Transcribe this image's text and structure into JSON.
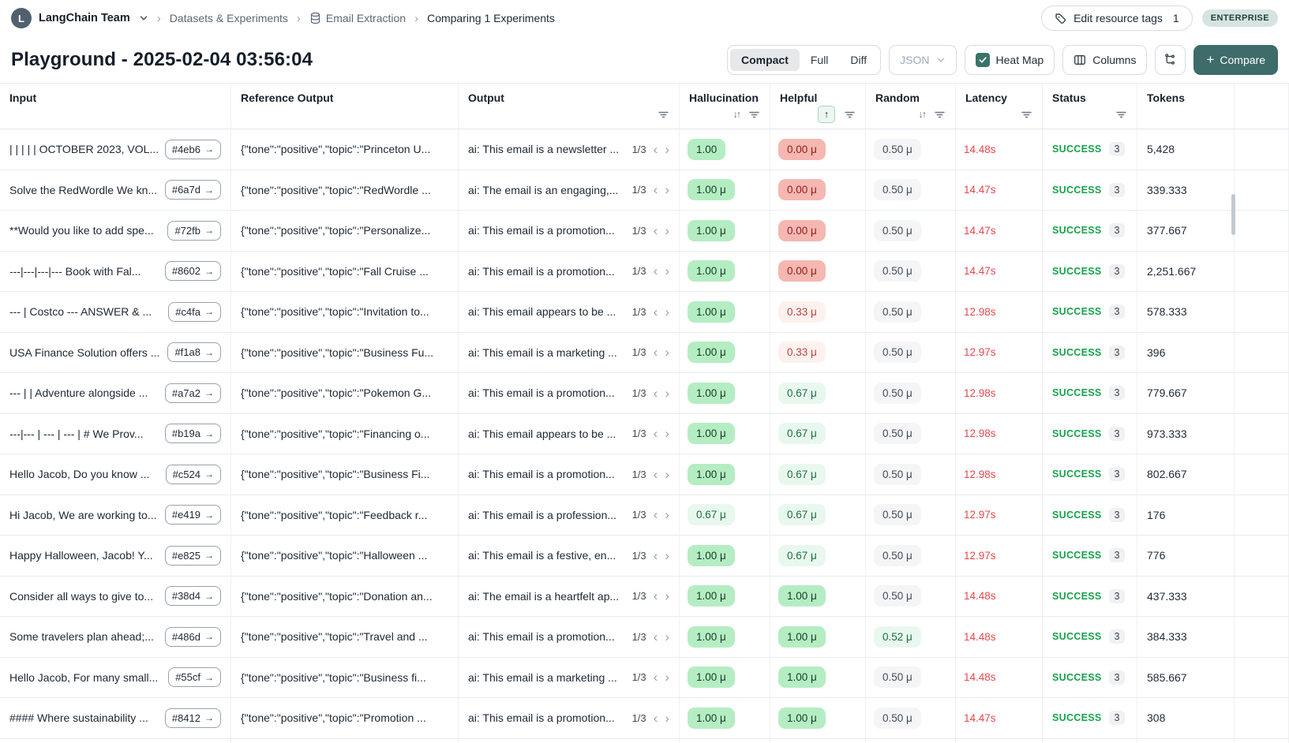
{
  "topbar": {
    "avatar_letter": "L",
    "team_name": "LangChain Team",
    "breadcrumb_datasets": "Datasets & Experiments",
    "breadcrumb_dataset_name": "Email Extraction",
    "breadcrumb_current": "Comparing 1 Experiments",
    "edit_tags_label": "Edit resource tags",
    "edit_tags_count": "1",
    "enterprise_badge": "ENTERPRISE"
  },
  "header": {
    "title": "Playground - 2025-02-04 03:56:04",
    "view_modes": [
      "Compact",
      "Full",
      "Diff"
    ],
    "active_view_mode": "Compact",
    "json_label": "JSON",
    "heatmap_label": "Heat Map",
    "columns_label": "Columns",
    "compare_label": "Compare"
  },
  "colors": {
    "accent_teal": "#3d6c6a",
    "heatmap_green": "#b5edc3",
    "heatmap_green_light": "#e9f8ee",
    "heatmap_red": "#f5b7b1",
    "heatmap_red_light": "#fdf1ef",
    "latency_red": "#e5484d",
    "success_green": "#16a34a"
  },
  "table": {
    "columns": [
      "Input",
      "Reference Output",
      "Output",
      "Hallucination",
      "Helpful",
      "Random",
      "Latency",
      "Status",
      "Tokens"
    ],
    "rows": [
      {
        "input": "| | | | | OCTOBER 2023, VOL...",
        "id": "#4eb6",
        "ref": "{\"tone\":\"positive\",\"topic\":\"Princeton U...",
        "output": "ai: This email is a newsletter ...",
        "pager": "1/3",
        "hallucination": "1.00",
        "hallucination_style": "green",
        "helpful": "0.00 μ",
        "helpful_style": "red",
        "random": "0.50 μ",
        "random_style": "gray",
        "latency": "14.48s",
        "status": "SUCCESS",
        "runs": "3",
        "tokens": "5,428"
      },
      {
        "input": "Solve the RedWordle We kn...",
        "id": "#6a7d",
        "ref": "{\"tone\":\"positive\",\"topic\":\"RedWordle ...",
        "output": "ai: The email is an engaging,...",
        "pager": "1/3",
        "hallucination": "1.00 μ",
        "hallucination_style": "green",
        "helpful": "0.00 μ",
        "helpful_style": "red",
        "random": "0.50 μ",
        "random_style": "gray",
        "latency": "14.47s",
        "status": "SUCCESS",
        "runs": "3",
        "tokens": "339.333"
      },
      {
        "input": "**Would you like to add spe...",
        "id": "#72fb",
        "ref": "{\"tone\":\"positive\",\"topic\":\"Personalize...",
        "output": "ai: This email is a promotion...",
        "pager": "1/3",
        "hallucination": "1.00 μ",
        "hallucination_style": "green",
        "helpful": "0.00 μ",
        "helpful_style": "red",
        "random": "0.50 μ",
        "random_style": "gray",
        "latency": "14.47s",
        "status": "SUCCESS",
        "runs": "3",
        "tokens": "377.667"
      },
      {
        "input": "---|---|---|--- Book with Fal...",
        "id": "#8602",
        "ref": "{\"tone\":\"positive\",\"topic\":\"Fall Cruise ...",
        "output": "ai: This email is a promotion...",
        "pager": "1/3",
        "hallucination": "1.00 μ",
        "hallucination_style": "green",
        "helpful": "0.00 μ",
        "helpful_style": "red",
        "random": "0.50 μ",
        "random_style": "gray",
        "latency": "14.47s",
        "status": "SUCCESS",
        "runs": "3",
        "tokens": "2,251.667"
      },
      {
        "input": "--- | Costco --- ANSWER & ...",
        "id": "#c4fa",
        "ref": "{\"tone\":\"positive\",\"topic\":\"Invitation to...",
        "output": "ai: This email appears to be ...",
        "pager": "1/3",
        "hallucination": "1.00 μ",
        "hallucination_style": "green",
        "helpful": "0.33 μ",
        "helpful_style": "red-light",
        "random": "0.50 μ",
        "random_style": "gray",
        "latency": "12.98s",
        "status": "SUCCESS",
        "runs": "3",
        "tokens": "578.333"
      },
      {
        "input": "USA Finance Solution offers ...",
        "id": "#f1a8",
        "ref": "{\"tone\":\"positive\",\"topic\":\"Business Fu...",
        "output": "ai: This email is a marketing ...",
        "pager": "1/3",
        "hallucination": "1.00 μ",
        "hallucination_style": "green",
        "helpful": "0.33 μ",
        "helpful_style": "red-light",
        "random": "0.50 μ",
        "random_style": "gray",
        "latency": "12.97s",
        "status": "SUCCESS",
        "runs": "3",
        "tokens": "396"
      },
      {
        "input": "--- | | Adventure alongside ...",
        "id": "#a7a2",
        "ref": "{\"tone\":\"positive\",\"topic\":\"Pokemon G...",
        "output": "ai: This email is a promotion...",
        "pager": "1/3",
        "hallucination": "1.00 μ",
        "hallucination_style": "green",
        "helpful": "0.67 μ",
        "helpful_style": "green-light",
        "random": "0.50 μ",
        "random_style": "gray",
        "latency": "12.98s",
        "status": "SUCCESS",
        "runs": "3",
        "tokens": "779.667"
      },
      {
        "input": "---|--- | --- | --- | # We Prov...",
        "id": "#b19a",
        "ref": "{\"tone\":\"positive\",\"topic\":\"Financing o...",
        "output": "ai: This email appears to be ...",
        "pager": "1/3",
        "hallucination": "1.00 μ",
        "hallucination_style": "green",
        "helpful": "0.67 μ",
        "helpful_style": "green-light",
        "random": "0.50 μ",
        "random_style": "gray",
        "latency": "12.98s",
        "status": "SUCCESS",
        "runs": "3",
        "tokens": "973.333"
      },
      {
        "input": "Hello Jacob, Do you know ...",
        "id": "#c524",
        "ref": "{\"tone\":\"positive\",\"topic\":\"Business Fi...",
        "output": "ai: This email is a promotion...",
        "pager": "1/3",
        "hallucination": "1.00 μ",
        "hallucination_style": "green",
        "helpful": "0.67 μ",
        "helpful_style": "green-light",
        "random": "0.50 μ",
        "random_style": "gray",
        "latency": "12.98s",
        "status": "SUCCESS",
        "runs": "3",
        "tokens": "802.667"
      },
      {
        "input": "Hi Jacob, We are working to...",
        "id": "#e419",
        "ref": "{\"tone\":\"positive\",\"topic\":\"Feedback r...",
        "output": "ai: This email is a profession...",
        "pager": "1/3",
        "hallucination": "0.67 μ",
        "hallucination_style": "green-light",
        "helpful": "0.67 μ",
        "helpful_style": "green-light",
        "random": "0.50 μ",
        "random_style": "gray",
        "latency": "12.97s",
        "status": "SUCCESS",
        "runs": "3",
        "tokens": "176"
      },
      {
        "input": "Happy Halloween, Jacob! Y...",
        "id": "#e825",
        "ref": "{\"tone\":\"positive\",\"topic\":\"Halloween ...",
        "output": "ai: This email is a festive, en...",
        "pager": "1/3",
        "hallucination": "1.00 μ",
        "hallucination_style": "green",
        "helpful": "0.67 μ",
        "helpful_style": "green-light",
        "random": "0.50 μ",
        "random_style": "gray",
        "latency": "12.97s",
        "status": "SUCCESS",
        "runs": "3",
        "tokens": "776"
      },
      {
        "input": "Consider all ways to give to...",
        "id": "#38d4",
        "ref": "{\"tone\":\"positive\",\"topic\":\"Donation an...",
        "output": "ai: The email is a heartfelt ap...",
        "pager": "1/3",
        "hallucination": "1.00 μ",
        "hallucination_style": "green",
        "helpful": "1.00 μ",
        "helpful_style": "green",
        "random": "0.50 μ",
        "random_style": "gray",
        "latency": "14.48s",
        "status": "SUCCESS",
        "runs": "3",
        "tokens": "437.333"
      },
      {
        "input": "Some travelers plan ahead;...",
        "id": "#486d",
        "ref": "{\"tone\":\"positive\",\"topic\":\"Travel and ...",
        "output": "ai: This email is a promotion...",
        "pager": "1/3",
        "hallucination": "1.00 μ",
        "hallucination_style": "green",
        "helpful": "1.00 μ",
        "helpful_style": "green",
        "random": "0.52 μ",
        "random_style": "green-light",
        "latency": "14.48s",
        "status": "SUCCESS",
        "runs": "3",
        "tokens": "384.333"
      },
      {
        "input": "Hello Jacob, For many small...",
        "id": "#55cf",
        "ref": "{\"tone\":\"positive\",\"topic\":\"Business fi...",
        "output": "ai: This email is a marketing ...",
        "pager": "1/3",
        "hallucination": "1.00 μ",
        "hallucination_style": "green",
        "helpful": "1.00 μ",
        "helpful_style": "green",
        "random": "0.50 μ",
        "random_style": "gray",
        "latency": "14.48s",
        "status": "SUCCESS",
        "runs": "3",
        "tokens": "585.667"
      },
      {
        "input": "#### Where sustainability ...",
        "id": "#8412",
        "ref": "{\"tone\":\"positive\",\"topic\":\"Promotion ...",
        "output": "ai: This email is a promotion...",
        "pager": "1/3",
        "hallucination": "1.00 μ",
        "hallucination_style": "green",
        "helpful": "1.00 μ",
        "helpful_style": "green",
        "random": "0.50 μ",
        "random_style": "gray",
        "latency": "14.47s",
        "status": "SUCCESS",
        "runs": "3",
        "tokens": "308"
      }
    ]
  }
}
